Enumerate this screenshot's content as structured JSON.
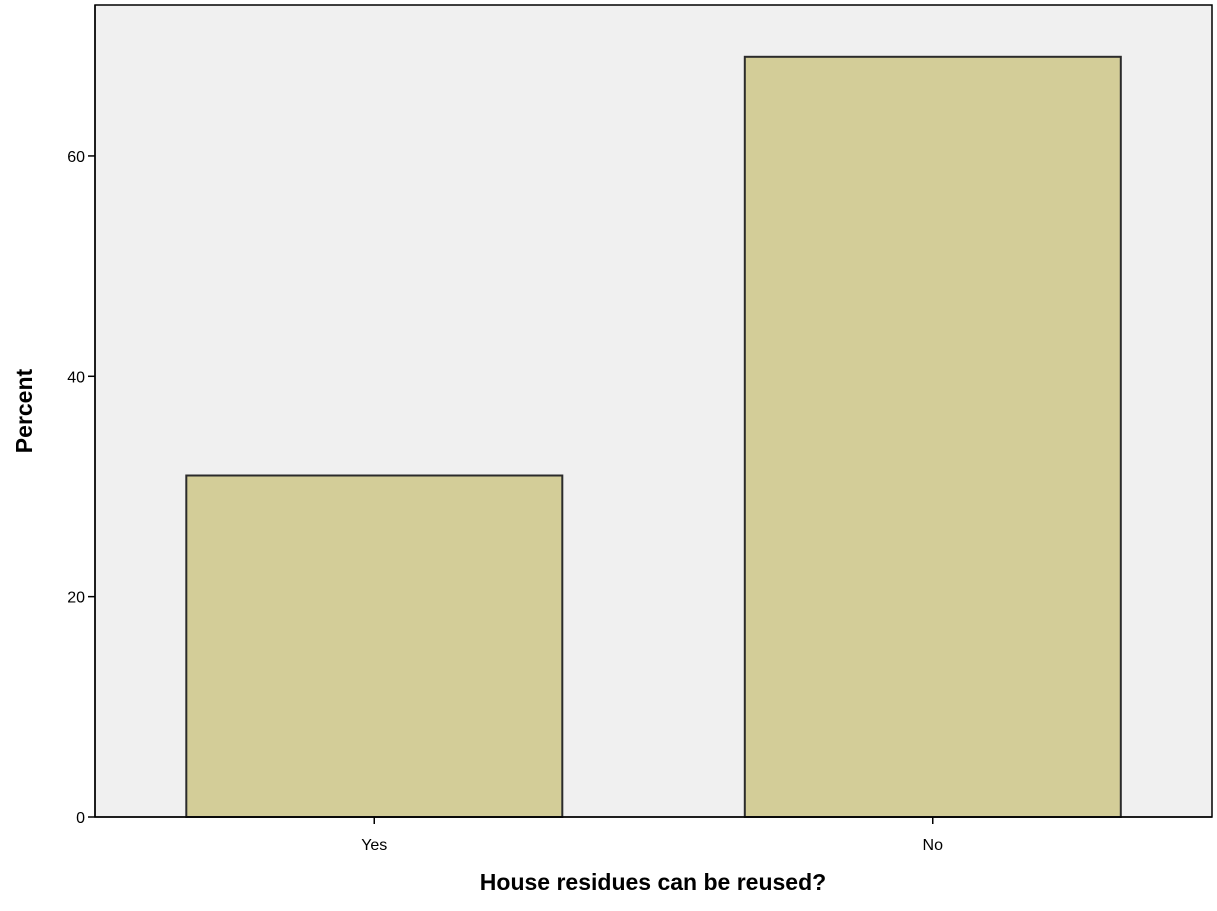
{
  "chart_data": {
    "type": "bar",
    "title": "",
    "xlabel": "House residues can be reused?",
    "ylabel": "Percent",
    "categories": [
      "Yes",
      "No"
    ],
    "values": [
      31,
      69
    ],
    "ylim": [
      0,
      73.7
    ],
    "yticks": [
      0,
      20,
      40,
      60
    ],
    "grid": false,
    "legend": "none",
    "colors": {
      "bar_fill": "#d3cd98",
      "bar_stroke": "#2b2b2b",
      "plot_background": "#f0f0f0",
      "axis": "#000000"
    }
  }
}
